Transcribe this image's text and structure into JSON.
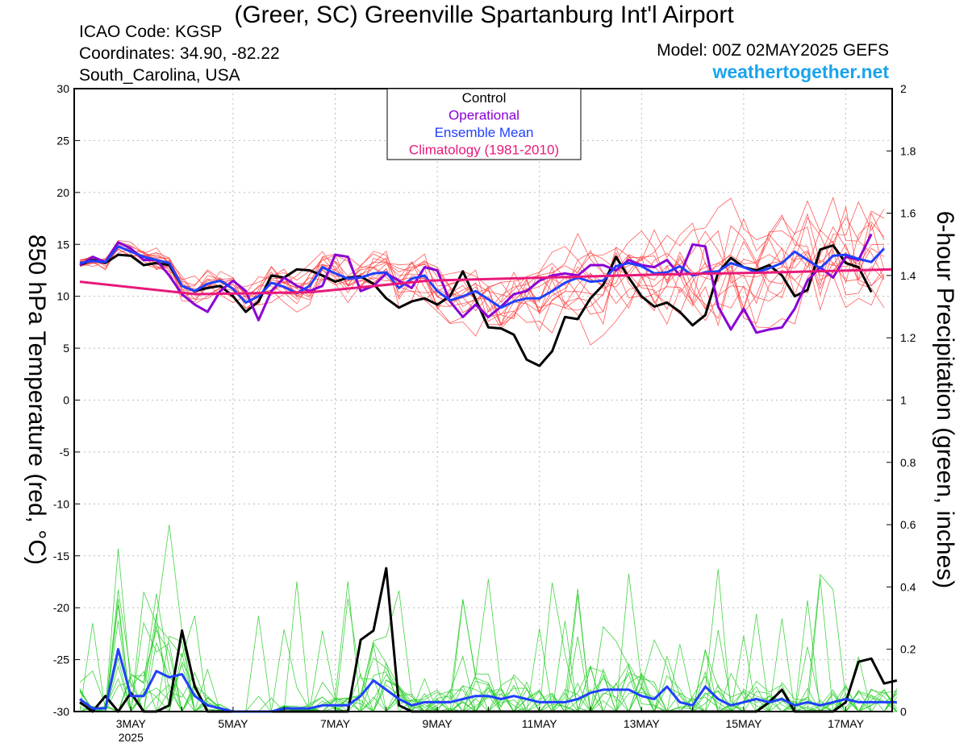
{
  "header": {
    "title": "(Greer, SC) Greenville Spartanburg Int'l Airport",
    "icao": "ICAO Code: KGSP",
    "coords": "Coordinates: 34.90, -82.22",
    "region": "South_Carolina, USA",
    "model": "Model: 00Z 02MAY2025 GEFS",
    "website": "weathertogether.net"
  },
  "chart_data": {
    "type": "line",
    "title": "(Greer, SC) Greenville Spartanburg Int'l Airport",
    "ylabel": "850 hPa Temperature (red, °C)",
    "y2label": "6-hour Precipitation (green, inches)",
    "ylim": [
      -30,
      30
    ],
    "y2lim": [
      0,
      2
    ],
    "yticks": [
      "30",
      "25",
      "20",
      "15",
      "10",
      "5",
      "0",
      "-5",
      "-10",
      "-15",
      "-20",
      "-25",
      "-30"
    ],
    "y2ticks": [
      "2",
      "1.8",
      "1.6",
      "1.4",
      "1.2",
      "1",
      "0.8",
      "0.6",
      "0.4",
      "0.2",
      "0"
    ],
    "xtick_labels": [
      "3MAY",
      "5MAY",
      "7MAY",
      "9MAY",
      "11MAY",
      "13MAY",
      "15MAY",
      "17MAY"
    ],
    "xtick_year": "2025",
    "x_start": "2025-05-02 00Z",
    "x_step": "6h",
    "grid": true,
    "legend": [
      "Control",
      "Operational",
      "Ensemble Mean",
      "Climatology (1981-2010)"
    ],
    "legend_position": "top-center",
    "colors": {
      "control": "#000000",
      "operational": "#8a00d4",
      "mean": "#2040ff",
      "climo": "#e8197a",
      "members_temp": "#ff4040",
      "members_precip": "#22cc22"
    },
    "series": [
      {
        "name": "Control",
        "variable": "temperature",
        "values": [
          13,
          13.5,
          13.2,
          14,
          13.9,
          13,
          13.2,
          13,
          11,
          10.5,
          10.8,
          11,
          10,
          8.5,
          9.5,
          12,
          11.8,
          12.6,
          12.5,
          12,
          11.4,
          11.8,
          11.9,
          11.2,
          9.8,
          8.9,
          9.5,
          9.8,
          9.2,
          10,
          12.4,
          9.7,
          7,
          6.9,
          6.3,
          3.9,
          3.3,
          4.7,
          8,
          7.8,
          9.8,
          11.1,
          13.8,
          11.8,
          10,
          9,
          9.4,
          8.5,
          7.2,
          8.2,
          12.3,
          13.7,
          12.8,
          12.5,
          13,
          12,
          10,
          10.6,
          14.5,
          14.9,
          13.2,
          12.8,
          10.4
        ]
      },
      {
        "name": "Operational",
        "variable": "temperature",
        "values": [
          13,
          13.8,
          13.3,
          15.2,
          14.6,
          13.5,
          13.5,
          12,
          10.2,
          9.2,
          8.5,
          10.5,
          11.5,
          10.5,
          7.7,
          10.5,
          11.8,
          11,
          10.5,
          11,
          14,
          13.8,
          10.5,
          11,
          12.2,
          11.5,
          10.8,
          12.8,
          12.5,
          9.5,
          8,
          9.2,
          8,
          9,
          10.2,
          10.5,
          11.5,
          12,
          12.2,
          12,
          13,
          13,
          12.5,
          13.5,
          13,
          12.8,
          13.5,
          12,
          15,
          14.8,
          9,
          6.8,
          8.8,
          6.5,
          6.8,
          7,
          8.8,
          11.5,
          12.8,
          11.8,
          13.8,
          13.5,
          16
        ]
      },
      {
        "name": "Ensemble Mean",
        "variable": "temperature",
        "values": [
          13.2,
          13.4,
          13.3,
          14.8,
          14.3,
          13.8,
          13.5,
          13.2,
          11,
          10.5,
          11.2,
          11.5,
          10.7,
          9.4,
          10,
          11.3,
          10.9,
          10.3,
          11,
          12.8,
          12.2,
          11.7,
          11.8,
          12.2,
          12.3,
          10.8,
          11.7,
          12,
          10.5,
          9.6,
          10,
          10.5,
          9.7,
          8.9,
          9.5,
          9.8,
          9.8,
          10.5,
          11.3,
          11.8,
          11.4,
          11.5,
          12.9,
          13.2,
          12.9,
          12.2,
          12.3,
          12.9,
          12,
          12.3,
          12.4,
          13.2,
          12.8,
          12.3,
          12.7,
          13.2,
          14.3,
          13.5,
          12.7,
          13.9,
          14,
          13.6,
          13.3,
          14.6
        ]
      },
      {
        "name": "Climatology (1981-2010)",
        "variable": "temperature",
        "values": [
          11.4,
          10.2,
          10.4,
          11.5,
          11.8,
          12.1,
          12.3,
          12.6
        ]
      },
      {
        "name": "Control",
        "variable": "precipitation",
        "values": [
          0.03,
          0,
          0.05,
          0,
          0.06,
          0,
          0,
          0.02,
          0.26,
          0.08,
          0,
          0,
          0,
          0,
          0,
          0,
          0,
          0,
          0,
          0,
          0,
          0,
          0.23,
          0.26,
          0.46,
          0.02,
          0,
          0,
          0,
          0,
          0,
          0,
          0,
          0,
          0,
          0,
          0,
          0,
          0,
          0,
          0,
          0,
          0,
          0,
          0,
          0,
          0,
          0,
          0,
          0,
          0,
          0,
          0,
          0,
          0.03,
          0.07,
          0,
          0,
          0,
          0,
          0.03,
          0.16,
          0.17,
          0.09,
          0.1
        ]
      },
      {
        "name": "Ensemble Mean",
        "variable": "precipitation",
        "values": [
          0.04,
          0.01,
          0.01,
          0.2,
          0.05,
          0.05,
          0.13,
          0.11,
          0.12,
          0.05,
          0.02,
          0.01,
          0,
          0,
          0,
          0,
          0.01,
          0.01,
          0.01,
          0.02,
          0.02,
          0.02,
          0.05,
          0.1,
          0.07,
          0.04,
          0.02,
          0.03,
          0.03,
          0.03,
          0.04,
          0.05,
          0.05,
          0.04,
          0.05,
          0.04,
          0.03,
          0.03,
          0.03,
          0.04,
          0.06,
          0.07,
          0.07,
          0.07,
          0.05,
          0.04,
          0.08,
          0.03,
          0.02,
          0.08,
          0.04,
          0.02,
          0.03,
          0.04,
          0.03,
          0.04,
          0.02,
          0.03,
          0.02,
          0.03,
          0.04,
          0.03,
          0.03,
          0.03,
          0.03
        ]
      }
    ],
    "member_count": 14,
    "members_temperature_range": [
      4.5,
      19.5
    ],
    "members_precipitation_range": [
      0,
      0.7
    ]
  }
}
